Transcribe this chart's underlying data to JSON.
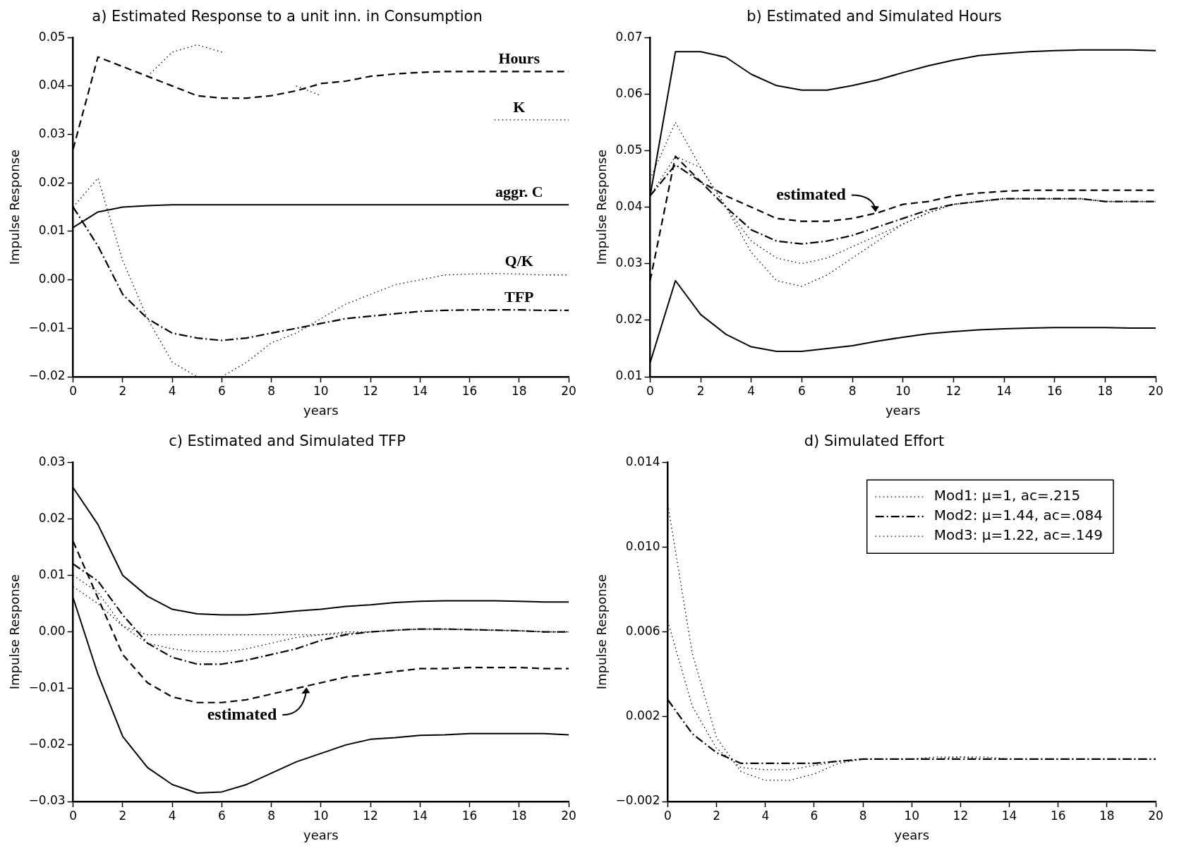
{
  "chart_data": [
    {
      "type": "line",
      "title": "a) Estimated Response to a unit inn. in Consumption",
      "xlabel": "years",
      "ylabel": "Impulse Response",
      "x": [
        0,
        1,
        2,
        3,
        4,
        5,
        6,
        7,
        8,
        9,
        10,
        11,
        12,
        13,
        14,
        15,
        16,
        17,
        18,
        19,
        20
      ],
      "xlim": [
        0,
        20
      ],
      "xticks": [
        0,
        2,
        4,
        6,
        8,
        10,
        12,
        14,
        16,
        18,
        20
      ],
      "ylim": [
        -0.02,
        0.05
      ],
      "yticks": [
        {
          "value": -0.02,
          "label": "−0.02"
        },
        {
          "value": -0.01,
          "label": "−0.01"
        },
        {
          "value": 0,
          "label": "0.00"
        },
        {
          "value": 0.01,
          "label": "0.01"
        },
        {
          "value": 0.02,
          "label": "0.02"
        },
        {
          "value": 0.03,
          "label": "0.03"
        },
        {
          "value": 0.04,
          "label": "0.04"
        },
        {
          "value": 0.05,
          "label": "0.05"
        }
      ],
      "marker": "none",
      "series": [
        {
          "name": "Hours",
          "color": "#000000",
          "line_style": "dashed",
          "values": [
            0.027,
            0.046,
            0.044,
            0.042,
            0.04,
            0.038,
            0.0375,
            0.0375,
            0.038,
            0.039,
            0.0405,
            0.041,
            0.042,
            0.0425,
            0.0428,
            0.043,
            0.043,
            0.043,
            0.043,
            0.043,
            0.043
          ]
        },
        {
          "name": "K",
          "color": "#000000",
          "line_style": "dotted",
          "values": [
            null,
            null,
            null,
            0.042,
            0.047,
            0.0485,
            0.047,
            null,
            null,
            0.04,
            0.038,
            null,
            null,
            null,
            null,
            null,
            null,
            0.033,
            0.033,
            0.033,
            0.033
          ]
        },
        {
          "name": "aggr. C",
          "color": "#000000",
          "line_style": "solid",
          "values": [
            0.0108,
            0.014,
            0.015,
            0.0153,
            0.0155,
            0.0155,
            0.0155,
            0.0155,
            0.0155,
            0.0155,
            0.0155,
            0.0155,
            0.0155,
            0.0155,
            0.0155,
            0.0155,
            0.0155,
            0.0155,
            0.0155,
            0.0155,
            0.0155
          ]
        },
        {
          "name": "Q/K",
          "color": "#000000",
          "line_style": "dotted",
          "values": [
            0.015,
            0.021,
            0.004,
            -0.008,
            -0.017,
            -0.02,
            -0.02,
            -0.017,
            -0.013,
            -0.011,
            -0.008,
            -0.005,
            -0.003,
            -0.001,
            0,
            0.001,
            0.0012,
            0.0013,
            0.0012,
            0.001,
            0.001
          ]
        },
        {
          "name": "TFP",
          "color": "#000000",
          "line_style": "dashdot",
          "values": [
            0.015,
            0.007,
            -0.003,
            -0.008,
            -0.011,
            -0.012,
            -0.0125,
            -0.012,
            -0.011,
            -0.01,
            -0.009,
            -0.008,
            -0.0075,
            -0.007,
            -0.0065,
            -0.0063,
            -0.0062,
            -0.0062,
            -0.0062,
            -0.0063,
            -0.0063
          ]
        }
      ]
    },
    {
      "type": "line",
      "title": "b) Estimated and Simulated Hours",
      "xlabel": "years",
      "ylabel": "Impulse Response",
      "x": [
        0,
        1,
        2,
        3,
        4,
        5,
        6,
        7,
        8,
        9,
        10,
        11,
        12,
        13,
        14,
        15,
        16,
        17,
        18,
        19,
        20
      ],
      "xlim": [
        0,
        20
      ],
      "xticks": [
        0,
        2,
        4,
        6,
        8,
        10,
        12,
        14,
        16,
        18,
        20
      ],
      "ylim": [
        0.01,
        0.07
      ],
      "yticks": [
        0.01,
        0.02,
        0.03,
        0.04,
        0.05,
        0.06,
        0.07
      ],
      "marker": "none",
      "annotations": [
        {
          "text": "estimated",
          "x": 9,
          "y": 0.039
        }
      ],
      "series": [
        {
          "color": "#000000",
          "line_style": "solid",
          "values": [
            0.042,
            0.0675,
            0.0675,
            0.0665,
            0.0635,
            0.0615,
            0.0607,
            0.0607,
            0.0615,
            0.0625,
            0.0638,
            0.065,
            0.066,
            0.0668,
            0.0672,
            0.0675,
            0.0677,
            0.0678,
            0.0678,
            0.0678,
            0.0677
          ]
        },
        {
          "color": "#000000",
          "line_style": "solid",
          "values": [
            0.0125,
            0.027,
            0.021,
            0.0175,
            0.0153,
            0.0145,
            0.0145,
            0.015,
            0.0155,
            0.0163,
            0.017,
            0.0176,
            0.018,
            0.0183,
            0.0185,
            0.0186,
            0.0187,
            0.0187,
            0.0187,
            0.0186,
            0.0186
          ]
        },
        {
          "color": "#000000",
          "line_style": "dashed",
          "values": [
            0.027,
            0.049,
            0.0445,
            0.042,
            0.04,
            0.038,
            0.0375,
            0.0375,
            0.038,
            0.039,
            0.0405,
            0.041,
            0.042,
            0.0425,
            0.0428,
            0.043,
            0.043,
            0.043,
            0.043,
            0.043,
            0.043
          ]
        },
        {
          "color": "#000000",
          "line_style": "dashdot",
          "values": [
            0.042,
            0.0475,
            0.0445,
            0.04,
            0.036,
            0.034,
            0.0335,
            0.034,
            0.035,
            0.0365,
            0.038,
            0.0395,
            0.0405,
            0.041,
            0.0415,
            0.0415,
            0.0415,
            0.0415,
            0.041,
            0.041,
            0.041
          ]
        },
        {
          "color": "#000000",
          "line_style": "dotted",
          "values": [
            0.042,
            0.049,
            0.047,
            0.04,
            0.034,
            0.031,
            0.03,
            0.031,
            0.033,
            0.035,
            0.037,
            0.039,
            0.0405,
            0.041,
            0.0415,
            0.0415,
            0.0415,
            0.0415,
            0.041,
            0.041,
            0.041
          ]
        },
        {
          "color": "#000000",
          "line_style": "dotted",
          "values": [
            0.045,
            0.055,
            0.047,
            0.04,
            0.032,
            0.027,
            0.026,
            0.028,
            0.031,
            0.034,
            0.037,
            0.039,
            0.0405,
            0.041,
            0.0415,
            0.0415,
            0.0415,
            0.0415,
            0.041,
            0.041,
            0.041
          ]
        }
      ]
    },
    {
      "type": "line",
      "title": "c) Estimated and Simulated TFP",
      "xlabel": "years",
      "ylabel": "Impulse Response",
      "x": [
        0,
        1,
        2,
        3,
        4,
        5,
        6,
        7,
        8,
        9,
        10,
        11,
        12,
        13,
        14,
        15,
        16,
        17,
        18,
        19,
        20
      ],
      "xlim": [
        0,
        20
      ],
      "xticks": [
        0,
        2,
        4,
        6,
        8,
        10,
        12,
        14,
        16,
        18,
        20
      ],
      "ylim": [
        -0.03,
        0.03
      ],
      "yticks": [
        {
          "value": -0.03,
          "label": "−0.03"
        },
        {
          "value": -0.02,
          "label": "−0.02"
        },
        {
          "value": -0.01,
          "label": "−0.01"
        },
        {
          "value": 0,
          "label": "0.00"
        },
        {
          "value": 0.01,
          "label": "0.01"
        },
        {
          "value": 0.02,
          "label": "0.02"
        },
        {
          "value": 0.03,
          "label": "0.03"
        }
      ],
      "marker": "none",
      "annotations": [
        {
          "text": "estimated",
          "x": 9.5,
          "y": -0.0097
        }
      ],
      "series": [
        {
          "color": "#000000",
          "line_style": "solid",
          "values": [
            0.0255,
            0.019,
            0.01,
            0.0063,
            0.004,
            0.0032,
            0.003,
            0.003,
            0.0033,
            0.0037,
            0.004,
            0.0045,
            0.0048,
            0.0052,
            0.0054,
            0.0055,
            0.0055,
            0.0055,
            0.0054,
            0.0053,
            0.0053
          ]
        },
        {
          "color": "#000000",
          "line_style": "solid",
          "values": [
            0.006,
            -0.0075,
            -0.0185,
            -0.024,
            -0.027,
            -0.0285,
            -0.0283,
            -0.027,
            -0.025,
            -0.023,
            -0.0215,
            -0.02,
            -0.019,
            -0.0187,
            -0.0183,
            -0.0182,
            -0.018,
            -0.018,
            -0.018,
            -0.018,
            -0.0182
          ]
        },
        {
          "color": "#000000",
          "line_style": "dashed",
          "values": [
            0.016,
            0.006,
            -0.004,
            -0.009,
            -0.0115,
            -0.0125,
            -0.0125,
            -0.012,
            -0.011,
            -0.01,
            -0.009,
            -0.008,
            -0.0075,
            -0.007,
            -0.0065,
            -0.0065,
            -0.0063,
            -0.0063,
            -0.0063,
            -0.0065,
            -0.0065
          ]
        },
        {
          "color": "#000000",
          "line_style": "dashdot",
          "values": [
            0.012,
            0.009,
            0.003,
            -0.002,
            -0.0045,
            -0.0057,
            -0.0057,
            -0.005,
            -0.004,
            -0.003,
            -0.0015,
            -0.0005,
            0,
            0.0003,
            0.0005,
            0.0005,
            0.0004,
            0.0003,
            0.0002,
            0,
            0
          ]
        },
        {
          "color": "#000000",
          "line_style": "dotted",
          "values": [
            0.01,
            0.007,
            0.001,
            -0.002,
            -0.003,
            -0.0035,
            -0.0035,
            -0.003,
            -0.002,
            -0.001,
            -0.0005,
            0,
            0,
            0.0003,
            0.0005,
            0.0005,
            0.0004,
            0.0003,
            0.0002,
            0,
            0
          ]
        },
        {
          "color": "#000000",
          "line_style": "dotted",
          "values": [
            0.008,
            0.005,
            0.001,
            -0.0005,
            -0.0005,
            -0.0005,
            -0.0005,
            -0.0005,
            -0.0005,
            -0.0005,
            -0.0005,
            -0.0003,
            0,
            0.0003,
            0.0005,
            0.0005,
            0.0004,
            0.0003,
            0.0002,
            0,
            0
          ]
        }
      ]
    },
    {
      "type": "line",
      "title": "d) Simulated Effort",
      "xlabel": "years",
      "ylabel": "Impulse Response",
      "x": [
        0,
        1,
        2,
        3,
        4,
        5,
        6,
        7,
        8,
        9,
        10,
        11,
        12,
        13,
        14,
        15,
        16,
        17,
        18,
        19,
        20
      ],
      "xlim": [
        0,
        20
      ],
      "xticks": [
        0,
        2,
        4,
        6,
        8,
        10,
        12,
        14,
        16,
        18,
        20
      ],
      "ylim": [
        -0.002,
        0.014
      ],
      "yticks": [
        {
          "value": -0.002,
          "label": "−0.002"
        },
        {
          "value": 0.002,
          "label": "0.002"
        },
        {
          "value": 0.006,
          "label": "0.006"
        },
        {
          "value": 0.01,
          "label": "0.010"
        },
        {
          "value": 0.014,
          "label": "0.014"
        }
      ],
      "marker": "none",
      "legend": "top right",
      "series": [
        {
          "name": "Mod1: μ=1, ac=.215",
          "color": "#000000",
          "line_style": "dotted",
          "values": [
            0.012,
            0.005,
            0.001,
            -0.0006,
            -0.001,
            -0.001,
            -0.0007,
            -0.0002,
            0,
            0,
            0,
            0.0001,
            0.0001,
            0.0001,
            0,
            0,
            0,
            0,
            0,
            0,
            0
          ]
        },
        {
          "name": "Mod2: μ=1.44, ac=.084",
          "color": "#000000",
          "line_style": "dashdot",
          "values": [
            0.0028,
            0.0012,
            0.0003,
            -0.0002,
            -0.0002,
            -0.0002,
            -0.0002,
            -0.0001,
            0,
            0,
            0,
            0,
            0,
            0,
            0,
            0,
            0,
            0,
            0,
            0,
            0
          ]
        },
        {
          "name": "Mod3: μ=1.22, ac=.149",
          "color": "#000000",
          "line_style": "dotted",
          "values": [
            0.0065,
            0.0025,
            0.0005,
            -0.0004,
            -0.0005,
            -0.0005,
            -0.0003,
            -0.0001,
            0,
            0,
            0,
            0,
            0.0001,
            0,
            0,
            0,
            0,
            0,
            0,
            0,
            0
          ]
        }
      ]
    }
  ]
}
